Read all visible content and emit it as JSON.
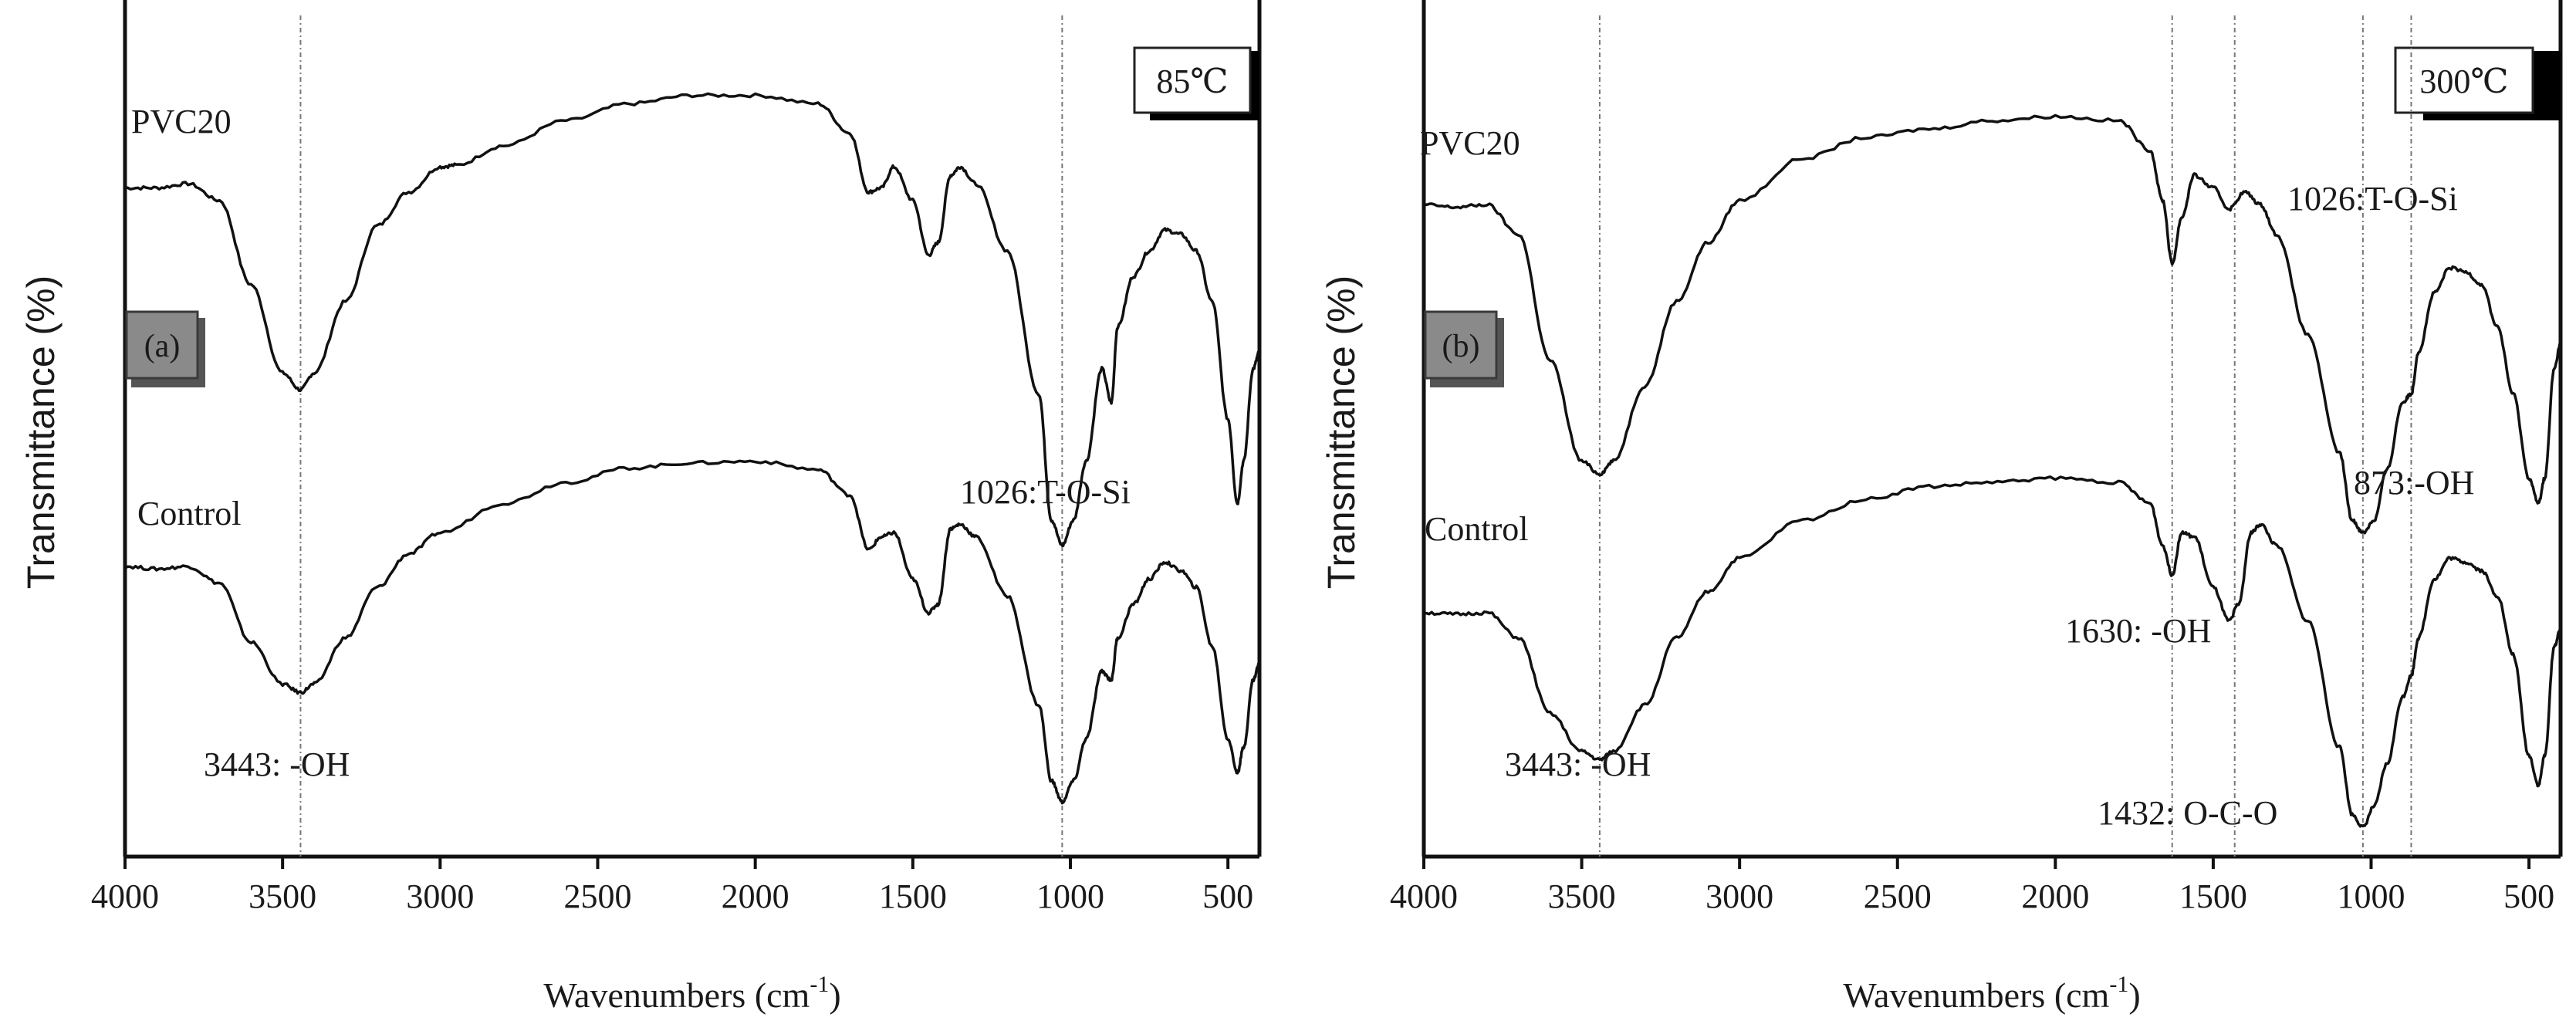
{
  "chart_data": [
    {
      "type": "line",
      "panel_label": "(a)",
      "temperature_label": "85℃",
      "xlabel": "Wavenumbers (cm",
      "xlabel_sup": "-1",
      "xlabel_close": ")",
      "ylabel": "Transmittance (%)",
      "xlim": [
        4000,
        400
      ],
      "x_ticks": [
        4000,
        3500,
        3000,
        2500,
        2000,
        1500,
        1000,
        500
      ],
      "y_ticks_shown": false,
      "reference_lines": [
        3443,
        1026
      ],
      "series": [
        {
          "name": "PVC20",
          "points": [
            [
              4000,
              0.795
            ],
            [
              3900,
              0.795
            ],
            [
              3800,
              0.8
            ],
            [
              3700,
              0.78
            ],
            [
              3600,
              0.68
            ],
            [
              3500,
              0.575
            ],
            [
              3443,
              0.555
            ],
            [
              3400,
              0.575
            ],
            [
              3300,
              0.66
            ],
            [
              3200,
              0.75
            ],
            [
              3100,
              0.79
            ],
            [
              3000,
              0.82
            ],
            [
              2950,
              0.822
            ],
            [
              2800,
              0.845
            ],
            [
              2600,
              0.875
            ],
            [
              2400,
              0.895
            ],
            [
              2200,
              0.905
            ],
            [
              2000,
              0.905
            ],
            [
              1800,
              0.895
            ],
            [
              1700,
              0.86
            ],
            [
              1640,
              0.79
            ],
            [
              1600,
              0.795
            ],
            [
              1560,
              0.82
            ],
            [
              1500,
              0.78
            ],
            [
              1450,
              0.715
            ],
            [
              1420,
              0.73
            ],
            [
              1380,
              0.81
            ],
            [
              1350,
              0.82
            ],
            [
              1300,
              0.8
            ],
            [
              1200,
              0.72
            ],
            [
              1100,
              0.55
            ],
            [
              1060,
              0.4
            ],
            [
              1026,
              0.37
            ],
            [
              990,
              0.4
            ],
            [
              950,
              0.47
            ],
            [
              900,
              0.58
            ],
            [
              870,
              0.54
            ],
            [
              850,
              0.63
            ],
            [
              800,
              0.69
            ],
            [
              750,
              0.72
            ],
            [
              700,
              0.745
            ],
            [
              650,
              0.74
            ],
            [
              600,
              0.72
            ],
            [
              550,
              0.66
            ],
            [
              500,
              0.52
            ],
            [
              470,
              0.42
            ],
            [
              450,
              0.47
            ],
            [
              420,
              0.58
            ],
            [
              400,
              0.6
            ]
          ]
        },
        {
          "name": "Control",
          "points": [
            [
              4000,
              0.345
            ],
            [
              3900,
              0.342
            ],
            [
              3800,
              0.345
            ],
            [
              3700,
              0.325
            ],
            [
              3600,
              0.255
            ],
            [
              3500,
              0.205
            ],
            [
              3443,
              0.195
            ],
            [
              3400,
              0.205
            ],
            [
              3300,
              0.26
            ],
            [
              3200,
              0.32
            ],
            [
              3100,
              0.36
            ],
            [
              3000,
              0.385
            ],
            [
              2800,
              0.42
            ],
            [
              2600,
              0.445
            ],
            [
              2400,
              0.462
            ],
            [
              2200,
              0.468
            ],
            [
              2000,
              0.47
            ],
            [
              1800,
              0.46
            ],
            [
              1700,
              0.43
            ],
            [
              1640,
              0.365
            ],
            [
              1600,
              0.38
            ],
            [
              1560,
              0.385
            ],
            [
              1500,
              0.33
            ],
            [
              1450,
              0.29
            ],
            [
              1420,
              0.3
            ],
            [
              1380,
              0.39
            ],
            [
              1350,
              0.395
            ],
            [
              1300,
              0.38
            ],
            [
              1200,
              0.31
            ],
            [
              1100,
              0.18
            ],
            [
              1060,
              0.09
            ],
            [
              1026,
              0.065
            ],
            [
              990,
              0.09
            ],
            [
              950,
              0.14
            ],
            [
              900,
              0.22
            ],
            [
              870,
              0.21
            ],
            [
              850,
              0.26
            ],
            [
              800,
              0.3
            ],
            [
              750,
              0.33
            ],
            [
              700,
              0.35
            ],
            [
              650,
              0.34
            ],
            [
              600,
              0.32
            ],
            [
              550,
              0.25
            ],
            [
              500,
              0.14
            ],
            [
              470,
              0.1
            ],
            [
              450,
              0.13
            ],
            [
              420,
              0.21
            ],
            [
              400,
              0.23
            ]
          ]
        }
      ],
      "series_labels": [
        "PVC20",
        "Control"
      ],
      "annotations": [
        "1026:T-O-Si",
        "3443: -OH"
      ]
    },
    {
      "type": "line",
      "panel_label": "(b)",
      "temperature_label": "300℃",
      "xlabel": "Wavenumbers (cm",
      "xlabel_sup": "-1",
      "xlabel_close": ")",
      "ylabel": "Transmittance (%)",
      "xlim": [
        4000,
        400
      ],
      "x_ticks": [
        4000,
        3500,
        3000,
        2500,
        2000,
        1500,
        1000,
        500
      ],
      "y_ticks_shown": false,
      "reference_lines": [
        3443,
        1630,
        1432,
        1026,
        873
      ],
      "series": [
        {
          "name": "PVC20",
          "points": [
            [
              4000,
              0.775
            ],
            [
              3900,
              0.772
            ],
            [
              3800,
              0.775
            ],
            [
              3700,
              0.74
            ],
            [
              3600,
              0.59
            ],
            [
              3500,
              0.47
            ],
            [
              3443,
              0.455
            ],
            [
              3400,
              0.47
            ],
            [
              3300,
              0.56
            ],
            [
              3200,
              0.66
            ],
            [
              3100,
              0.73
            ],
            [
              3000,
              0.78
            ],
            [
              2800,
              0.83
            ],
            [
              2600,
              0.855
            ],
            [
              2400,
              0.865
            ],
            [
              2200,
              0.875
            ],
            [
              2000,
              0.88
            ],
            [
              1800,
              0.875
            ],
            [
              1700,
              0.84
            ],
            [
              1660,
              0.78
            ],
            [
              1630,
              0.705
            ],
            [
              1600,
              0.76
            ],
            [
              1560,
              0.81
            ],
            [
              1500,
              0.795
            ],
            [
              1450,
              0.77
            ],
            [
              1400,
              0.79
            ],
            [
              1350,
              0.775
            ],
            [
              1300,
              0.74
            ],
            [
              1200,
              0.62
            ],
            [
              1100,
              0.48
            ],
            [
              1060,
              0.4
            ],
            [
              1026,
              0.385
            ],
            [
              990,
              0.4
            ],
            [
              950,
              0.46
            ],
            [
              900,
              0.54
            ],
            [
              873,
              0.55
            ],
            [
              850,
              0.6
            ],
            [
              800,
              0.67
            ],
            [
              750,
              0.7
            ],
            [
              700,
              0.695
            ],
            [
              650,
              0.68
            ],
            [
              600,
              0.63
            ],
            [
              550,
              0.55
            ],
            [
              500,
              0.45
            ],
            [
              470,
              0.42
            ],
            [
              450,
              0.45
            ],
            [
              420,
              0.58
            ],
            [
              400,
              0.61
            ]
          ]
        },
        {
          "name": "Control",
          "points": [
            [
              4000,
              0.29
            ],
            [
              3900,
              0.288
            ],
            [
              3800,
              0.29
            ],
            [
              3700,
              0.26
            ],
            [
              3600,
              0.17
            ],
            [
              3500,
              0.125
            ],
            [
              3443,
              0.115
            ],
            [
              3400,
              0.125
            ],
            [
              3300,
              0.18
            ],
            [
              3200,
              0.26
            ],
            [
              3100,
              0.315
            ],
            [
              3000,
              0.355
            ],
            [
              2800,
              0.4
            ],
            [
              2600,
              0.425
            ],
            [
              2400,
              0.44
            ],
            [
              2200,
              0.445
            ],
            [
              2000,
              0.45
            ],
            [
              1800,
              0.445
            ],
            [
              1700,
              0.42
            ],
            [
              1660,
              0.37
            ],
            [
              1630,
              0.335
            ],
            [
              1600,
              0.385
            ],
            [
              1560,
              0.38
            ],
            [
              1500,
              0.32
            ],
            [
              1450,
              0.28
            ],
            [
              1420,
              0.3
            ],
            [
              1380,
              0.385
            ],
            [
              1350,
              0.395
            ],
            [
              1300,
              0.37
            ],
            [
              1200,
              0.28
            ],
            [
              1100,
              0.13
            ],
            [
              1060,
              0.05
            ],
            [
              1026,
              0.035
            ],
            [
              990,
              0.06
            ],
            [
              950,
              0.11
            ],
            [
              900,
              0.19
            ],
            [
              873,
              0.215
            ],
            [
              850,
              0.26
            ],
            [
              800,
              0.33
            ],
            [
              750,
              0.355
            ],
            [
              700,
              0.35
            ],
            [
              650,
              0.34
            ],
            [
              600,
              0.31
            ],
            [
              550,
              0.24
            ],
            [
              500,
              0.12
            ],
            [
              470,
              0.085
            ],
            [
              450,
              0.12
            ],
            [
              420,
              0.25
            ],
            [
              400,
              0.27
            ]
          ]
        }
      ],
      "series_labels": [
        "PVC20",
        "Control"
      ],
      "annotations": [
        "1026:T-O-Si",
        "873:-OH",
        "1630: -OH",
        "3443: -OH",
        "1432: O-C-O"
      ]
    }
  ]
}
